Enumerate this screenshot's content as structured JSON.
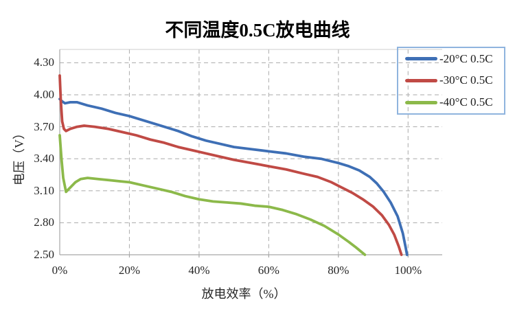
{
  "page": {
    "background": "#ffffff"
  },
  "chart": {
    "title": "不同温度0.5C放电曲线",
    "x_axis_title": "放电效率（%）",
    "y_axis_title": "电压（V）"
  },
  "chart_data": {
    "type": "line",
    "title": "不同温度0.5C放电曲线",
    "xlabel": "放电效率（%）",
    "ylabel": "电压（V）",
    "xlim": [
      0,
      109.8
    ],
    "ylim": [
      2.5,
      4.425
    ],
    "grid": "dashed-both",
    "grid_color": "#b2b2b2",
    "axis_color": "#a6a6a6",
    "legend_position": "top-right",
    "legend_border_color": "#8FB4DE",
    "x_ticks": [
      {
        "value": 0,
        "label": "0%"
      },
      {
        "value": 20,
        "label": "20%"
      },
      {
        "value": 40,
        "label": "40%"
      },
      {
        "value": 60,
        "label": "60%"
      },
      {
        "value": 80,
        "label": "80%"
      },
      {
        "value": 100,
        "label": "100%"
      }
    ],
    "y_ticks": [
      {
        "value": 4.3,
        "label": "4.30"
      },
      {
        "value": 4.0,
        "label": "4.00"
      },
      {
        "value": 3.7,
        "label": "3.70"
      },
      {
        "value": 3.4,
        "label": "3.40"
      },
      {
        "value": 3.1,
        "label": "3.10"
      },
      {
        "value": 2.8,
        "label": "2.80"
      },
      {
        "value": 2.5,
        "label": "2.50"
      }
    ],
    "series": [
      {
        "name": "-20°C 0.5C",
        "color": "#3E6FB5",
        "points": [
          [
            0,
            3.96
          ],
          [
            0.6,
            3.94
          ],
          [
            1.5,
            3.92
          ],
          [
            3,
            3.93
          ],
          [
            5,
            3.93
          ],
          [
            8,
            3.9
          ],
          [
            12,
            3.87
          ],
          [
            16,
            3.83
          ],
          [
            20,
            3.8
          ],
          [
            25,
            3.75
          ],
          [
            30,
            3.7
          ],
          [
            34,
            3.66
          ],
          [
            38,
            3.61
          ],
          [
            42,
            3.57
          ],
          [
            46,
            3.54
          ],
          [
            50,
            3.51
          ],
          [
            55,
            3.49
          ],
          [
            60,
            3.47
          ],
          [
            65,
            3.45
          ],
          [
            70,
            3.42
          ],
          [
            75,
            3.4
          ],
          [
            80,
            3.36
          ],
          [
            83,
            3.33
          ],
          [
            86,
            3.29
          ],
          [
            89,
            3.23
          ],
          [
            91,
            3.17
          ],
          [
            93,
            3.09
          ],
          [
            95,
            2.99
          ],
          [
            97,
            2.86
          ],
          [
            98.5,
            2.7
          ],
          [
            99.3,
            2.57
          ],
          [
            99.7,
            2.5
          ]
        ]
      },
      {
        "name": "-30°C 0.5C",
        "color": "#C04A45",
        "points": [
          [
            0,
            4.18
          ],
          [
            0.3,
            3.95
          ],
          [
            0.7,
            3.75
          ],
          [
            1.2,
            3.68
          ],
          [
            1.8,
            3.66
          ],
          [
            3,
            3.68
          ],
          [
            5,
            3.7
          ],
          [
            7,
            3.71
          ],
          [
            10,
            3.7
          ],
          [
            14,
            3.68
          ],
          [
            18,
            3.65
          ],
          [
            22,
            3.62
          ],
          [
            26,
            3.58
          ],
          [
            30,
            3.55
          ],
          [
            34,
            3.51
          ],
          [
            38,
            3.48
          ],
          [
            42,
            3.45
          ],
          [
            46,
            3.42
          ],
          [
            50,
            3.39
          ],
          [
            55,
            3.36
          ],
          [
            60,
            3.33
          ],
          [
            65,
            3.3
          ],
          [
            70,
            3.26
          ],
          [
            74,
            3.23
          ],
          [
            78,
            3.18
          ],
          [
            81,
            3.13
          ],
          [
            84,
            3.08
          ],
          [
            87,
            3.02
          ],
          [
            90,
            2.95
          ],
          [
            92.5,
            2.87
          ],
          [
            94.5,
            2.78
          ],
          [
            96,
            2.69
          ],
          [
            97.3,
            2.58
          ],
          [
            98.1,
            2.5
          ]
        ]
      },
      {
        "name": "-40°C 0.5C",
        "color": "#8CB94A",
        "points": [
          [
            0,
            3.62
          ],
          [
            0.5,
            3.4
          ],
          [
            1,
            3.22
          ],
          [
            1.8,
            3.09
          ],
          [
            3,
            3.13
          ],
          [
            4.5,
            3.18
          ],
          [
            6,
            3.21
          ],
          [
            8,
            3.22
          ],
          [
            11,
            3.21
          ],
          [
            14,
            3.2
          ],
          [
            17,
            3.19
          ],
          [
            20,
            3.18
          ],
          [
            24,
            3.15
          ],
          [
            28,
            3.12
          ],
          [
            32,
            3.09
          ],
          [
            36,
            3.05
          ],
          [
            40,
            3.02
          ],
          [
            44,
            3.0
          ],
          [
            48,
            2.99
          ],
          [
            52,
            2.98
          ],
          [
            56,
            2.96
          ],
          [
            60,
            2.95
          ],
          [
            64,
            2.92
          ],
          [
            68,
            2.88
          ],
          [
            72,
            2.83
          ],
          [
            76,
            2.77
          ],
          [
            80,
            2.69
          ],
          [
            83,
            2.62
          ],
          [
            85,
            2.57
          ],
          [
            87.6,
            2.5
          ]
        ]
      }
    ]
  }
}
